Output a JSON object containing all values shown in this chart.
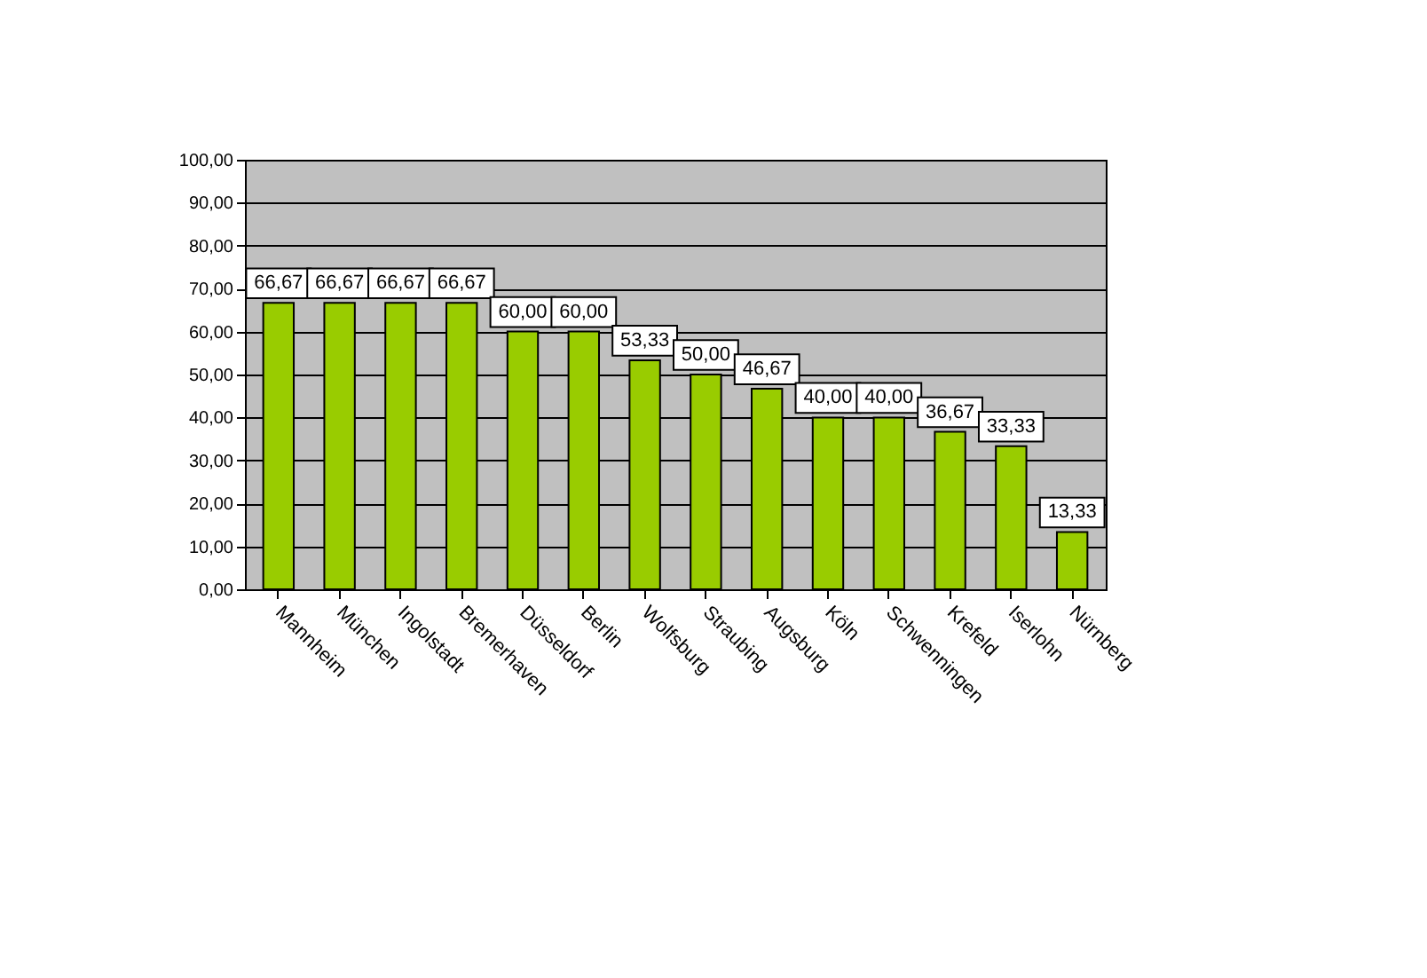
{
  "chart_data": {
    "type": "bar",
    "categories": [
      "Mannheim",
      "München",
      "Ingolstadt",
      "Bremerhaven",
      "Düsseldorf",
      "Berlin",
      "Wolfsburg",
      "Straubing",
      "Augsburg",
      "Köln",
      "Schwenningen",
      "Krefeld",
      "Iserlohn",
      "Nürnberg"
    ],
    "values": [
      66.67,
      66.67,
      66.67,
      66.67,
      60,
      60,
      53.33,
      50,
      46.67,
      40,
      40,
      36.67,
      33.33,
      13.33
    ],
    "color": "#99cc00",
    "value_labels": [
      "66,67",
      "66,67",
      "66,67",
      "66,67",
      "60,00",
      "60,00",
      "53,33",
      "50,00",
      "46,67",
      "40,00",
      "40,00",
      "36,67",
      "33,33",
      "13,33"
    ],
    "ylim": [
      0,
      100
    ],
    "yticks": [
      {
        "value": 0,
        "label": "0,00"
      },
      {
        "value": 10,
        "label": "10,00"
      },
      {
        "value": 20,
        "label": "20,00"
      },
      {
        "value": 30,
        "label": "30,00"
      },
      {
        "value": 40,
        "label": "40,00"
      },
      {
        "value": 50,
        "label": "50,00"
      },
      {
        "value": 60,
        "label": "60,00"
      },
      {
        "value": 70,
        "label": "70,00"
      },
      {
        "value": 80,
        "label": "80,00"
      },
      {
        "value": 90,
        "label": "90,00"
      },
      {
        "value": 100,
        "label": "100,00"
      }
    ],
    "grid": "y"
  }
}
